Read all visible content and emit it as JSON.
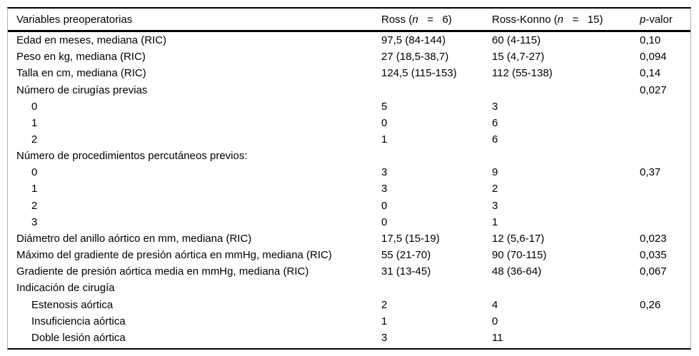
{
  "table": {
    "header": {
      "col1": "Variables preoperatorias",
      "col2": {
        "prefix": "Ross (",
        "n": "n",
        "suffix": "   =   6)"
      },
      "col3": {
        "prefix": "Ross-Konno (",
        "n": "n",
        "suffix": "   =   15)"
      },
      "col4": {
        "p": "p",
        "suffix": "-valor"
      }
    },
    "rows": [
      {
        "label": "Edad en meses, mediana (RIC)",
        "indent": 0,
        "ross": "97,5 (84-144)",
        "ross_konno": "60 (4-115)",
        "p": "0,10"
      },
      {
        "label": "Peso en kg, mediana (RIC)",
        "indent": 0,
        "ross": "27 (18,5-38,7)",
        "ross_konno": "15 (4,7-27)",
        "p": "0,094"
      },
      {
        "label": "Talla en cm, mediana (RIC)",
        "indent": 0,
        "ross": "124,5 (115-153)",
        "ross_konno": "112 (55-138)",
        "p": "0,14"
      },
      {
        "label": "Número de cirugías previas",
        "indent": 0,
        "ross": "",
        "ross_konno": "",
        "p": "0,027"
      },
      {
        "label": "0",
        "indent": 1,
        "ross": "5",
        "ross_konno": "3",
        "p": ""
      },
      {
        "label": "1",
        "indent": 1,
        "ross": "0",
        "ross_konno": "6",
        "p": ""
      },
      {
        "label": "2",
        "indent": 1,
        "ross": "1",
        "ross_konno": "6",
        "p": ""
      },
      {
        "label": "Número de procedimientos percutáneos previos:",
        "indent": 0,
        "ross": "",
        "ross_konno": "",
        "p": ""
      },
      {
        "label": "0",
        "indent": 1,
        "ross": "3",
        "ross_konno": "9",
        "p": "0,37"
      },
      {
        "label": "1",
        "indent": 1,
        "ross": "3",
        "ross_konno": "2",
        "p": ""
      },
      {
        "label": "2",
        "indent": 1,
        "ross": "0",
        "ross_konno": "3",
        "p": ""
      },
      {
        "label": "3",
        "indent": 1,
        "ross": "0",
        "ross_konno": "1",
        "p": ""
      },
      {
        "label": "Diámetro del anillo aórtico en mm, mediana (RIC)",
        "indent": 0,
        "ross": "17,5 (15-19)",
        "ross_konno": "12 (5,6-17)",
        "p": "0,023"
      },
      {
        "label": "Máximo del gradiente de presión aórtica en mmHg, mediana (RIC)",
        "indent": 0,
        "ross": "55 (21-70)",
        "ross_konno": "90 (70-115)",
        "p": "0,035"
      },
      {
        "label": "Gradiente de presión aórtica media en mmHg, mediana (RIC)",
        "indent": 0,
        "ross": "31 (13-45)",
        "ross_konno": "48 (36-64)",
        "p": "0,067"
      },
      {
        "label": "Indicación de cirugía",
        "indent": 0,
        "ross": "",
        "ross_konno": "",
        "p": ""
      },
      {
        "label": "Estenosis aórtica",
        "indent": 1,
        "ross": "2",
        "ross_konno": "4",
        "p": "0,26"
      },
      {
        "label": "Insuficiencia aórtica",
        "indent": 1,
        "ross": "1",
        "ross_konno": "0",
        "p": ""
      },
      {
        "label": "Doble lesión aórtica",
        "indent": 1,
        "ross": "3",
        "ross_konno": "11",
        "p": ""
      }
    ]
  },
  "colors": {
    "background": "#ffffff",
    "text": "#000000",
    "rule_heavy": "#000000",
    "rule_side": "#b5b5b5"
  }
}
